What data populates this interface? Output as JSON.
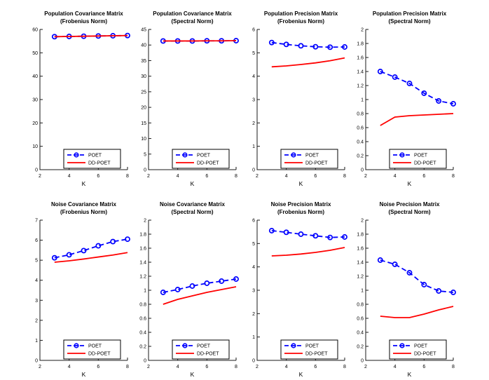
{
  "figure": {
    "background": "#ffffff",
    "axis_color": "#1a1a1a",
    "text_color": "#000000",
    "xlabel": "K",
    "series_styles": [
      {
        "name": "POET",
        "color": "#0000ff",
        "dash": true,
        "marker": "circle"
      },
      {
        "name": "DD-POET",
        "color": "#ff0000",
        "dash": false,
        "marker": "none"
      }
    ],
    "legend_labels": [
      "POET",
      "DD-POET"
    ],
    "legend_position": "bottom-right-inside"
  },
  "chart_data": [
    {
      "type": "line",
      "key": "population-covariance-frobenius",
      "title_line1": "Population Covariance Matrix",
      "title_line2": "(Frobenius Norm)",
      "xlabel": "K",
      "xlim": [
        2,
        8
      ],
      "xtick_values": [
        2,
        4,
        6,
        8
      ],
      "xtick_labels": [
        "2",
        "4",
        "6",
        "8"
      ],
      "ylim": [
        0,
        60
      ],
      "ytick_values": [
        0,
        10,
        20,
        30,
        40,
        50,
        60
      ],
      "ytick_labels": [
        "0",
        "10",
        "20",
        "30",
        "40",
        "50",
        "60"
      ],
      "x": [
        3,
        4,
        5,
        6,
        7,
        8
      ],
      "series": [
        {
          "name": "POET",
          "values": [
            56.9,
            57.0,
            57.1,
            57.2,
            57.3,
            57.4
          ]
        },
        {
          "name": "DD-POET",
          "values": [
            56.9,
            57.0,
            57.1,
            57.2,
            57.3,
            57.4
          ]
        }
      ],
      "legend": [
        "POET",
        "DD-POET"
      ],
      "grid": false
    },
    {
      "type": "line",
      "key": "population-covariance-spectral",
      "title_line1": "Population Covariance Matrix",
      "title_line2": "(Spectral Norm)",
      "xlabel": "K",
      "xlim": [
        2,
        8
      ],
      "xtick_values": [
        2,
        4,
        6,
        8
      ],
      "xtick_labels": [
        "2",
        "4",
        "6",
        "8"
      ],
      "ylim": [
        0,
        45
      ],
      "ytick_values": [
        0,
        5,
        10,
        15,
        20,
        25,
        30,
        35,
        40,
        45
      ],
      "ytick_labels": [
        "0",
        "5",
        "10",
        "15",
        "20",
        "25",
        "30",
        "35",
        "40",
        "45"
      ],
      "x": [
        3,
        4,
        5,
        6,
        7,
        8
      ],
      "series": [
        {
          "name": "POET",
          "values": [
            41.3,
            41.3,
            41.3,
            41.35,
            41.35,
            41.4
          ]
        },
        {
          "name": "DD-POET",
          "values": [
            41.3,
            41.3,
            41.3,
            41.35,
            41.35,
            41.4
          ]
        }
      ],
      "legend": [
        "POET",
        "DD-POET"
      ],
      "grid": false
    },
    {
      "type": "line",
      "key": "population-precision-frobenius",
      "title_line1": "Population Precision Matrix",
      "title_line2": "(Frobenius Norm)",
      "xlabel": "K",
      "xlim": [
        2,
        8
      ],
      "xtick_values": [
        2,
        4,
        6,
        8
      ],
      "xtick_labels": [
        "2",
        "4",
        "6",
        "8"
      ],
      "ylim": [
        0,
        6
      ],
      "ytick_values": [
        0,
        1,
        2,
        3,
        4,
        5,
        6
      ],
      "ytick_labels": [
        "0",
        "1",
        "2",
        "3",
        "4",
        "5",
        "6"
      ],
      "x": [
        3,
        4,
        5,
        6,
        7,
        8
      ],
      "series": [
        {
          "name": "POET",
          "values": [
            5.44,
            5.36,
            5.3,
            5.26,
            5.24,
            5.25
          ]
        },
        {
          "name": "DD-POET",
          "values": [
            4.4,
            4.44,
            4.5,
            4.57,
            4.66,
            4.78
          ]
        }
      ],
      "legend": [
        "POET",
        "DD-POET"
      ],
      "grid": false
    },
    {
      "type": "line",
      "key": "population-precision-spectral",
      "title_line1": "Population Precision Matrix",
      "title_line2": "(Spectral Norm)",
      "xlabel": "K",
      "xlim": [
        2,
        8
      ],
      "xtick_values": [
        2,
        4,
        6,
        8
      ],
      "xtick_labels": [
        "2",
        "4",
        "6",
        "8"
      ],
      "ylim": [
        0,
        2
      ],
      "ytick_values": [
        0,
        0.2,
        0.4,
        0.6,
        0.8,
        1,
        1.2,
        1.4,
        1.6,
        1.8,
        2
      ],
      "ytick_labels": [
        "0",
        "0.2",
        "0.4",
        "0.6",
        "0.8",
        "1",
        "1.2",
        "1.4",
        "1.6",
        "1.8",
        "2"
      ],
      "x": [
        3,
        4,
        5,
        6,
        7,
        8
      ],
      "series": [
        {
          "name": "POET",
          "values": [
            1.4,
            1.32,
            1.23,
            1.09,
            0.98,
            0.94
          ]
        },
        {
          "name": "DD-POET",
          "values": [
            0.63,
            0.75,
            0.77,
            0.78,
            0.79,
            0.8
          ]
        }
      ],
      "legend": [
        "POET",
        "DD-POET"
      ],
      "grid": false
    },
    {
      "type": "line",
      "key": "noise-covariance-frobenius",
      "title_line1": "Noise Covariance Matrix",
      "title_line2": "(Frobenius Norm)",
      "xlabel": "K",
      "xlim": [
        2,
        8
      ],
      "xtick_values": [
        2,
        4,
        6,
        8
      ],
      "xtick_labels": [
        "2",
        "4",
        "6",
        "8"
      ],
      "ylim": [
        0,
        7
      ],
      "ytick_values": [
        0,
        1,
        2,
        3,
        4,
        5,
        6,
        7
      ],
      "ytick_labels": [
        "0",
        "1",
        "2",
        "3",
        "4",
        "5",
        "6",
        "7"
      ],
      "x": [
        3,
        4,
        5,
        6,
        7,
        8
      ],
      "series": [
        {
          "name": "POET",
          "values": [
            5.12,
            5.27,
            5.48,
            5.72,
            5.93,
            6.05
          ]
        },
        {
          "name": "DD-POET",
          "values": [
            4.9,
            4.97,
            5.06,
            5.16,
            5.26,
            5.38
          ]
        }
      ],
      "legend": [
        "POET",
        "DD-POET"
      ],
      "grid": false
    },
    {
      "type": "line",
      "key": "noise-covariance-spectral",
      "title_line1": "Noise Covariance Matrix",
      "title_line2": "(Spectral Norm)",
      "xlabel": "K",
      "xlim": [
        2,
        8
      ],
      "xtick_values": [
        2,
        4,
        6,
        8
      ],
      "xtick_labels": [
        "2",
        "4",
        "6",
        "8"
      ],
      "ylim": [
        0,
        2
      ],
      "ytick_values": [
        0,
        0.2,
        0.4,
        0.6,
        0.8,
        1,
        1.2,
        1.4,
        1.6,
        1.8,
        2
      ],
      "ytick_labels": [
        "0",
        "0.2",
        "0.4",
        "0.6",
        "0.8",
        "1",
        "1.2",
        "1.4",
        "1.6",
        "1.8",
        "2"
      ],
      "x": [
        3,
        4,
        5,
        6,
        7,
        8
      ],
      "series": [
        {
          "name": "POET",
          "values": [
            0.97,
            1.01,
            1.06,
            1.1,
            1.13,
            1.16
          ]
        },
        {
          "name": "DD-POET",
          "values": [
            0.8,
            0.87,
            0.92,
            0.97,
            1.01,
            1.05
          ]
        }
      ],
      "legend": [
        "POET",
        "DD-POET"
      ],
      "grid": false
    },
    {
      "type": "line",
      "key": "noise-precision-frobenius",
      "title_line1": "Noise Precision Matrix",
      "title_line2": "(Frobenius Norm)",
      "xlabel": "K",
      "xlim": [
        2,
        8
      ],
      "xtick_values": [
        2,
        4,
        6,
        8
      ],
      "xtick_labels": [
        "2",
        "4",
        "6",
        "8"
      ],
      "ylim": [
        0,
        6
      ],
      "ytick_values": [
        0,
        1,
        2,
        3,
        4,
        5,
        6
      ],
      "ytick_labels": [
        "0",
        "1",
        "2",
        "3",
        "4",
        "5",
        "6"
      ],
      "x": [
        3,
        4,
        5,
        6,
        7,
        8
      ],
      "series": [
        {
          "name": "POET",
          "values": [
            5.55,
            5.48,
            5.4,
            5.33,
            5.26,
            5.28
          ]
        },
        {
          "name": "DD-POET",
          "values": [
            4.47,
            4.5,
            4.55,
            4.62,
            4.71,
            4.83
          ]
        }
      ],
      "legend": [
        "POET",
        "DD-POET"
      ],
      "grid": false
    },
    {
      "type": "line",
      "key": "noise-precision-spectral",
      "title_line1": "Noise Precision Matrix",
      "title_line2": "(Spectral Norm)",
      "xlabel": "K",
      "xlim": [
        2,
        8
      ],
      "xtick_values": [
        2,
        4,
        6,
        8
      ],
      "xtick_labels": [
        "2",
        "4",
        "6",
        "8"
      ],
      "ylim": [
        0,
        2
      ],
      "ytick_values": [
        0,
        0.2,
        0.4,
        0.6,
        0.8,
        1,
        1.2,
        1.4,
        1.6,
        1.8,
        2
      ],
      "ytick_labels": [
        "0",
        "0.2",
        "0.4",
        "0.6",
        "0.8",
        "1",
        "1.2",
        "1.4",
        "1.6",
        "1.8",
        "2"
      ],
      "x": [
        3,
        4,
        5,
        6,
        7,
        8
      ],
      "series": [
        {
          "name": "POET",
          "values": [
            1.43,
            1.37,
            1.25,
            1.08,
            0.99,
            0.97
          ]
        },
        {
          "name": "DD-POET",
          "values": [
            0.63,
            0.61,
            0.61,
            0.66,
            0.72,
            0.77
          ]
        }
      ],
      "legend": [
        "POET",
        "DD-POET"
      ],
      "grid": false
    }
  ]
}
